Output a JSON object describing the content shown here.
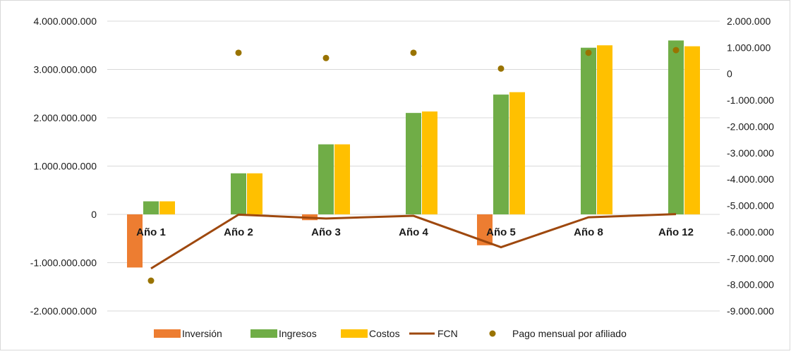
{
  "chart_data": {
    "type": "bar",
    "categories": [
      "Año 1",
      "Año 2",
      "Año 3",
      "Año 4",
      "Año 5",
      "Año 8",
      "Año 12"
    ],
    "series": [
      {
        "name": "Inversión",
        "type": "bar",
        "axis": "left",
        "color": "#ED7D31",
        "values": [
          -1100000000,
          0,
          -120000000,
          0,
          -640000000,
          0,
          0
        ]
      },
      {
        "name": "Ingresos",
        "type": "bar",
        "axis": "left",
        "color": "#70AD47",
        "values": [
          270000000,
          850000000,
          1450000000,
          2100000000,
          2480000000,
          3450000000,
          3600000000
        ]
      },
      {
        "name": "Costos",
        "type": "bar",
        "axis": "left",
        "color": "#FFC000",
        "values": [
          270000000,
          850000000,
          1450000000,
          2130000000,
          2530000000,
          3500000000,
          3480000000
        ]
      },
      {
        "name": "FCN",
        "type": "line",
        "axis": "left",
        "color": "#9E480E",
        "values": [
          -1120000000,
          -5000000,
          -85000000,
          -30000000,
          -680000000,
          -60000000,
          5000000
        ]
      },
      {
        "name": "Pago mensual por afiliado",
        "type": "scatter",
        "axis": "right",
        "color": "#997300",
        "values": [
          -7850000,
          800000,
          600000,
          800000,
          200000,
          800000,
          900000
        ]
      }
    ],
    "y_left": {
      "ylim": [
        -2000000000,
        4000000000
      ],
      "ticks": [
        -2000000000,
        -1000000000,
        0,
        1000000000,
        2000000000,
        3000000000,
        4000000000
      ],
      "tick_labels": [
        "-2.000.000.000",
        "-1.000.000.000",
        "0",
        "1.000.000.000",
        "2.000.000.000",
        "3.000.000.000",
        "4.000.000.000"
      ]
    },
    "y_right": {
      "ylim": [
        -9000000,
        2000000
      ],
      "ticks": [
        -9000000,
        -8000000,
        -7000000,
        -6000000,
        -5000000,
        -4000000,
        -3000000,
        -2000000,
        -1000000,
        0,
        1000000,
        2000000
      ],
      "tick_labels": [
        "-9.000.000",
        "-8.000.000",
        "-7.000.000",
        "-6.000.000",
        "-5.000.000",
        "-4.000.000",
        "-3.000.000",
        "-2.000.000",
        "-1.000.000",
        "0",
        "1.000.000",
        "2.000.000"
      ]
    },
    "title": "",
    "xlabel": "",
    "ylabel": "",
    "grid": true,
    "legend_position": "bottom"
  }
}
